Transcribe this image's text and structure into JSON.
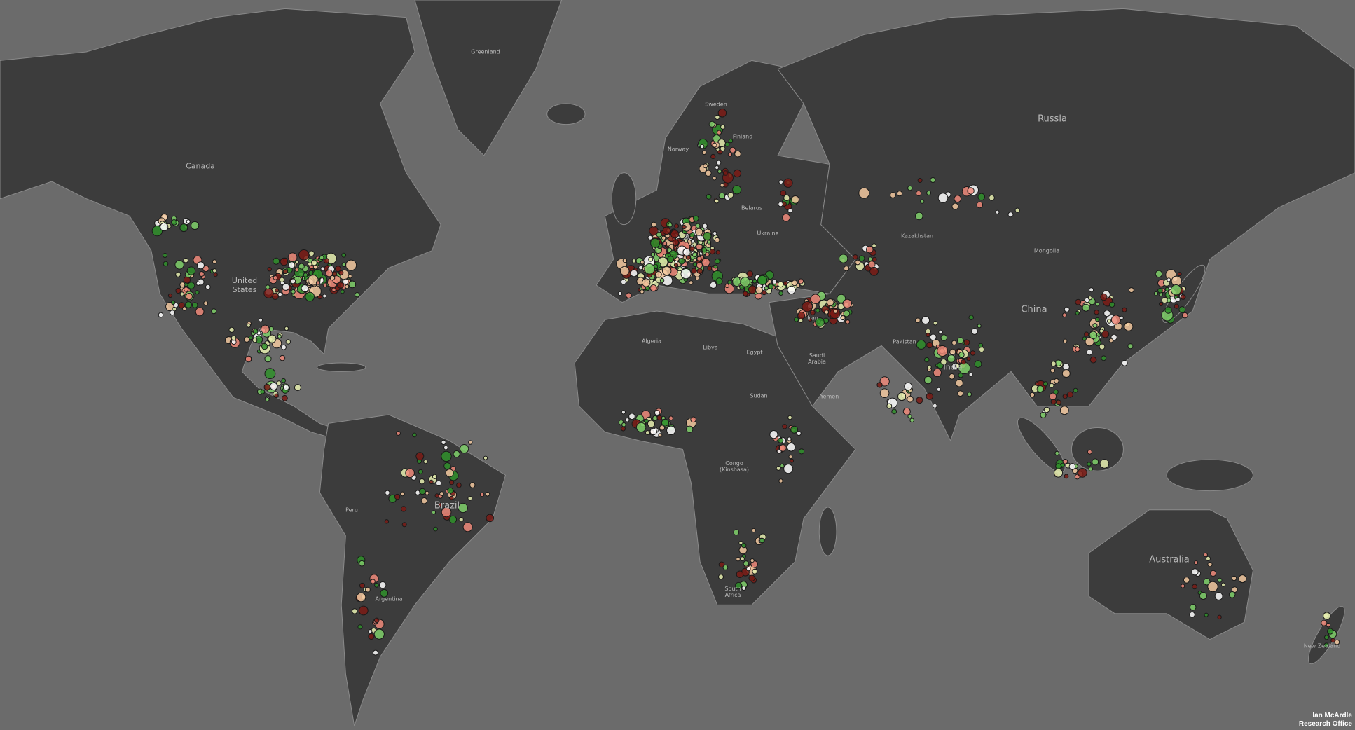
{
  "map": {
    "ocean_color": "#6b6b6b",
    "land_color": "#3c3c3c",
    "border_color": "#8a8a8a",
    "marker_colors": [
      "#f08a7a",
      "#e8f0b0",
      "#7fd06a",
      "#2f8f2a",
      "#7a1a14",
      "#f3c9a0",
      "#ffffff"
    ],
    "labels": {
      "greenland": "Greenland",
      "canada": "Canada",
      "united_states": "United States",
      "russia": "Russia",
      "sweden": "Sweden",
      "norway": "Norway",
      "finland": "Finland",
      "belarus": "Belarus",
      "ukraine": "Ukraine",
      "kazakhstan": "Kazakhstan",
      "mongolia": "Mongolia",
      "china": "China",
      "algeria": "Algeria",
      "libya": "Libya",
      "egypt": "Egypt",
      "saudi_arabia": "Saudi Arabia",
      "sudan": "Sudan",
      "yemen": "Yemen",
      "iran": "Iran",
      "pakistan": "Pakistan",
      "india": "India",
      "brazil": "Brazil",
      "peru": "Peru",
      "argentina": "Argentina",
      "congo": "Congo (Kinshasa)",
      "south_africa": "South Africa",
      "australia": "Australia",
      "new_zealand": "New Zealand"
    }
  },
  "credit": {
    "line1": "Ian McArdle",
    "line2": "Research Office"
  }
}
